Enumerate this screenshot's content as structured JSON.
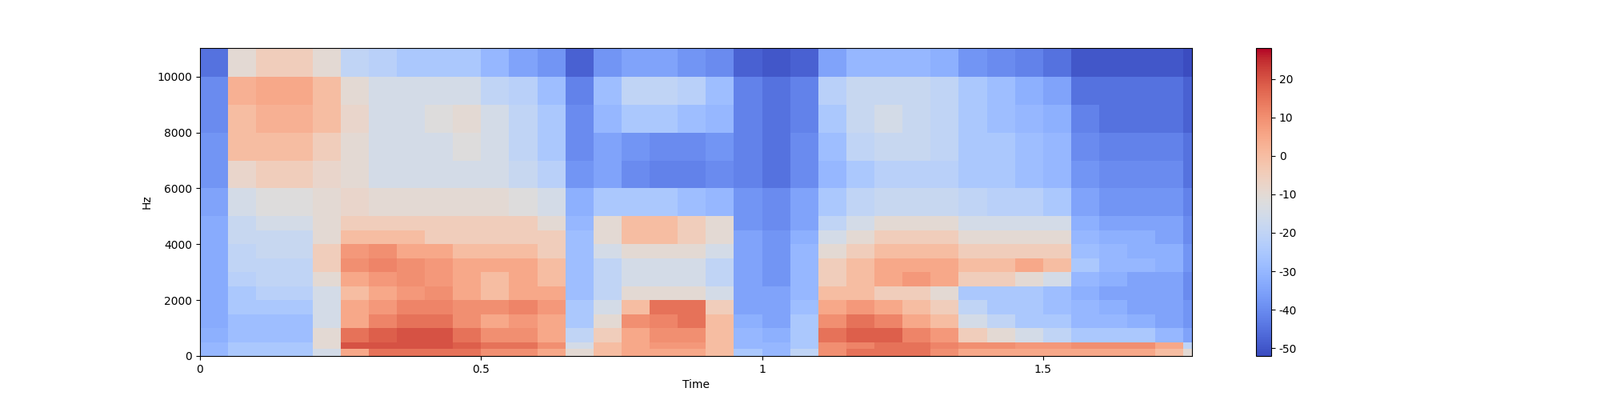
{
  "chart_data": {
    "type": "heatmap",
    "x_label": "Time",
    "y_label": "Hz",
    "x_edges": [
      0,
      0.05,
      0.1,
      0.15,
      0.2,
      0.25,
      0.3,
      0.35,
      0.4,
      0.45,
      0.5,
      0.55,
      0.6,
      0.65,
      0.7,
      0.75,
      0.8,
      0.85,
      0.9,
      0.95,
      1.0,
      1.05,
      1.1,
      1.15,
      1.2,
      1.25,
      1.3,
      1.35,
      1.4,
      1.45,
      1.5,
      1.55,
      1.6,
      1.65,
      1.7,
      1.75,
      1.765
    ],
    "y_edges": [
      0,
      250,
      500,
      1000,
      1500,
      2000,
      2500,
      3000,
      3500,
      4000,
      4500,
      5000,
      6000,
      7000,
      8000,
      9000,
      10000,
      11025
    ],
    "cells": [
      [
        -30,
        -25,
        -25,
        -25,
        -15,
        5,
        15,
        15,
        15,
        15,
        10,
        10,
        5,
        -10,
        0,
        5,
        5,
        5,
        0,
        -25,
        -30,
        -20,
        10,
        15,
        15,
        15,
        10,
        5,
        5,
        5,
        5,
        5,
        5,
        5,
        0,
        -10
      ],
      [
        -30,
        -25,
        -25,
        -25,
        -10,
        20,
        20,
        20,
        20,
        18,
        15,
        15,
        10,
        -15,
        0,
        5,
        8,
        8,
        0,
        -30,
        -30,
        -25,
        10,
        12,
        15,
        15,
        12,
        10,
        10,
        8,
        8,
        10,
        10,
        10,
        5,
        -20
      ],
      [
        -32,
        -28,
        -28,
        -28,
        -10,
        15,
        18,
        20,
        20,
        15,
        10,
        10,
        5,
        -20,
        -5,
        5,
        10,
        10,
        0,
        -30,
        -32,
        -25,
        15,
        18,
        18,
        12,
        8,
        -5,
        -10,
        -15,
        -20,
        -25,
        -25,
        -25,
        -30,
        -35
      ],
      [
        -33,
        -28,
        -28,
        -28,
        -15,
        5,
        12,
        15,
        15,
        10,
        5,
        8,
        5,
        -25,
        -10,
        10,
        12,
        15,
        0,
        -32,
        -35,
        -25,
        10,
        15,
        12,
        5,
        0,
        -15,
        -20,
        -25,
        -25,
        -30,
        -30,
        -32,
        -35,
        -38
      ],
      [
        -33,
        -25,
        -25,
        -25,
        -15,
        5,
        8,
        12,
        12,
        10,
        10,
        12,
        8,
        -25,
        -15,
        0,
        15,
        15,
        -5,
        -35,
        -35,
        -28,
        5,
        8,
        5,
        0,
        -5,
        -20,
        -25,
        -25,
        -28,
        -30,
        -32,
        -35,
        -35,
        -38
      ],
      [
        -33,
        -25,
        -22,
        -22,
        -15,
        0,
        5,
        8,
        10,
        5,
        0,
        5,
        5,
        -28,
        -20,
        -10,
        -10,
        -10,
        -15,
        -35,
        -35,
        -30,
        0,
        0,
        -5,
        -5,
        -10,
        -25,
        -25,
        -25,
        -28,
        -32,
        -35,
        -35,
        -35,
        -40
      ],
      [
        -33,
        -22,
        -20,
        -20,
        -10,
        5,
        8,
        10,
        8,
        5,
        0,
        5,
        0,
        -28,
        -20,
        -15,
        -15,
        -15,
        -20,
        -35,
        -38,
        -30,
        -5,
        0,
        5,
        8,
        5,
        -5,
        -5,
        -10,
        -15,
        -30,
        -32,
        -35,
        -35,
        -40
      ],
      [
        -33,
        -20,
        -20,
        -20,
        -5,
        10,
        12,
        10,
        8,
        5,
        5,
        5,
        0,
        -28,
        -20,
        -15,
        -15,
        -15,
        -20,
        -35,
        -38,
        -30,
        -5,
        0,
        5,
        5,
        5,
        0,
        0,
        5,
        0,
        -25,
        -30,
        -30,
        -32,
        -38
      ],
      [
        -33,
        -20,
        -18,
        -18,
        -5,
        8,
        10,
        5,
        5,
        0,
        0,
        0,
        -5,
        -28,
        -15,
        -10,
        -10,
        -10,
        -15,
        -35,
        -38,
        -30,
        -10,
        -5,
        0,
        0,
        0,
        -5,
        -5,
        -5,
        -5,
        -28,
        -30,
        -32,
        -32,
        -38
      ],
      [
        -33,
        -18,
        -18,
        -18,
        -10,
        0,
        0,
        0,
        -5,
        -5,
        -5,
        -5,
        -5,
        -28,
        -10,
        0,
        0,
        -5,
        -10,
        -35,
        -38,
        -32,
        -15,
        -10,
        -5,
        -5,
        -5,
        -10,
        -10,
        -10,
        -10,
        -30,
        -32,
        -32,
        -35,
        -40
      ],
      [
        -33,
        -18,
        -15,
        -15,
        -10,
        -5,
        -5,
        -5,
        -5,
        -5,
        -5,
        -5,
        -10,
        -30,
        -10,
        0,
        0,
        -5,
        -10,
        -38,
        -40,
        -35,
        -20,
        -15,
        -10,
        -10,
        -10,
        -15,
        -15,
        -15,
        -15,
        -32,
        -35,
        -35,
        -35,
        -40
      ],
      [
        -35,
        -15,
        -12,
        -12,
        -10,
        -8,
        -10,
        -10,
        -10,
        -10,
        -10,
        -12,
        -15,
        -32,
        -25,
        -25,
        -25,
        -28,
        -30,
        -38,
        -40,
        -35,
        -25,
        -20,
        -18,
        -18,
        -18,
        -20,
        -22,
        -22,
        -25,
        -35,
        -38,
        -38,
        -38,
        -42
      ],
      [
        -38,
        -8,
        -5,
        -5,
        -8,
        -10,
        -15,
        -15,
        -15,
        -15,
        -15,
        -18,
        -22,
        -38,
        -35,
        -40,
        -42,
        -42,
        -40,
        -42,
        -45,
        -40,
        -30,
        -25,
        -22,
        -22,
        -22,
        -25,
        -25,
        -28,
        -30,
        -38,
        -40,
        -40,
        -40,
        -45
      ],
      [
        -38,
        0,
        0,
        0,
        -5,
        -10,
        -15,
        -15,
        -15,
        -12,
        -15,
        -20,
        -25,
        -40,
        -35,
        -38,
        -40,
        -40,
        -38,
        -42,
        -45,
        -40,
        -28,
        -20,
        -18,
        -18,
        -20,
        -25,
        -25,
        -28,
        -30,
        -40,
        -42,
        -42,
        -42,
        -45
      ],
      [
        -40,
        0,
        3,
        3,
        0,
        -8,
        -15,
        -15,
        -12,
        -10,
        -15,
        -20,
        -25,
        -40,
        -30,
        -25,
        -25,
        -28,
        -30,
        -42,
        -45,
        -42,
        -25,
        -18,
        -15,
        -18,
        -20,
        -25,
        -28,
        -30,
        -32,
        -42,
        -45,
        -45,
        -45,
        -48
      ],
      [
        -40,
        3,
        5,
        5,
        0,
        -10,
        -15,
        -15,
        -15,
        -15,
        -20,
        -22,
        -28,
        -42,
        -28,
        -20,
        -20,
        -22,
        -28,
        -42,
        -45,
        -42,
        -22,
        -18,
        -18,
        -18,
        -20,
        -25,
        -28,
        -32,
        -35,
        -45,
        -45,
        -45,
        -45,
        -48
      ],
      [
        -45,
        -10,
        -5,
        -5,
        -10,
        -20,
        -22,
        -25,
        -25,
        -25,
        -30,
        -35,
        -38,
        -48,
        -38,
        -35,
        -35,
        -38,
        -40,
        -48,
        -50,
        -48,
        -35,
        -30,
        -30,
        -30,
        -32,
        -38,
        -40,
        -42,
        -45,
        -50,
        -50,
        -50,
        -50,
        -52
      ]
    ],
    "xlim": [
      0,
      1.765
    ],
    "ylim": [
      0,
      11025
    ],
    "xticks": [
      0,
      0.5,
      1,
      1.5
    ],
    "yticks": [
      0,
      2000,
      4000,
      6000,
      8000,
      10000
    ],
    "colorbar_range": [
      -52,
      28
    ],
    "colorbar_ticks": [
      -50,
      -40,
      -30,
      -20,
      -10,
      0,
      10,
      20
    ]
  }
}
